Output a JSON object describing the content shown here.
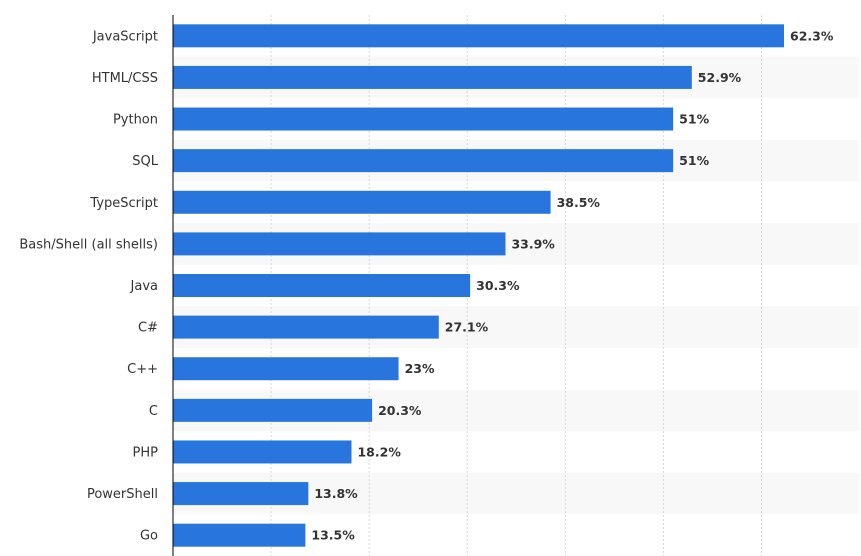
{
  "chart_data": {
    "type": "bar",
    "orientation": "horizontal",
    "categories": [
      "JavaScript",
      "HTML/CSS",
      "Python",
      "SQL",
      "TypeScript",
      "Bash/Shell (all shells)",
      "Java",
      "C#",
      "C++",
      "C",
      "PHP",
      "PowerShell",
      "Go"
    ],
    "values": [
      62.3,
      52.9,
      51,
      51,
      38.5,
      33.9,
      30.3,
      27.1,
      23,
      20.3,
      18.2,
      13.8,
      13.5
    ],
    "value_labels": [
      "62.3%",
      "52.9%",
      "51%",
      "51%",
      "38.5%",
      "33.9%",
      "30.3%",
      "27.1%",
      "23%",
      "20.3%",
      "18.2%",
      "13.8%",
      "13.5%"
    ],
    "xlim": [
      0,
      70
    ],
    "grid": true,
    "gridline_step": 10,
    "bar_color": "#2876dd",
    "band_color": "#f8f8f8",
    "grid_color": "#d8d8d8",
    "axis_color": "#000000",
    "label_color": "#333333",
    "value_label_color": "#333333"
  }
}
